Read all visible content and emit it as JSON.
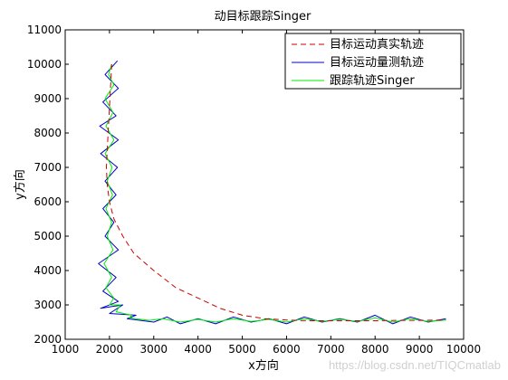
{
  "chart_data": {
    "type": "line",
    "title": "动目标跟踪Singer",
    "xlabel": "x方向",
    "ylabel": "y方向",
    "xlim": [
      1000,
      10000
    ],
    "ylim": [
      2000,
      11000
    ],
    "xticks": [
      1000,
      2000,
      3000,
      4000,
      5000,
      6000,
      7000,
      8000,
      9000,
      10000
    ],
    "yticks": [
      2000,
      3000,
      4000,
      5000,
      6000,
      7000,
      8000,
      9000,
      10000,
      11000
    ],
    "grid": false,
    "legend_position": "top-right",
    "series": [
      {
        "name": "目标运动真实轨迹",
        "color": "#cc0000",
        "style": "dashed",
        "x": [
          2050,
          2030,
          2010,
          1990,
          1970,
          1950,
          1930,
          1950,
          2000,
          2100,
          2300,
          2550,
          3000,
          3500,
          4000,
          4500,
          5000,
          5500,
          6000,
          6500,
          7000,
          7500,
          8000,
          8500,
          9000,
          9600
        ],
        "y": [
          10000,
          9500,
          9000,
          8500,
          8000,
          7500,
          7000,
          6500,
          6000,
          5500,
          5000,
          4500,
          4000,
          3500,
          3200,
          2900,
          2700,
          2600,
          2560,
          2540,
          2540,
          2540,
          2540,
          2550,
          2550,
          2560
        ]
      },
      {
        "name": "目标运动量测轨迹",
        "color": "#0000cc",
        "style": "solid",
        "x": [
          2180,
          1900,
          2200,
          1850,
          2150,
          1780,
          2200,
          1800,
          2180,
          1900,
          2150,
          1850,
          2100,
          1900,
          2200,
          1750,
          2150,
          1850,
          2200,
          1800,
          2300,
          2000,
          2600,
          2400,
          3000,
          3300,
          3600,
          4000,
          4400,
          4800,
          5200,
          5600,
          6000,
          6400,
          6800,
          7200,
          7600,
          8000,
          8400,
          8800,
          9200,
          9600
        ],
        "y": [
          10100,
          9700,
          9300,
          8900,
          8500,
          8200,
          7800,
          7400,
          7000,
          6600,
          6200,
          5800,
          5400,
          5000,
          4600,
          4200,
          3800,
          3400,
          3100,
          2900,
          3000,
          2750,
          2700,
          2600,
          2500,
          2650,
          2450,
          2600,
          2450,
          2650,
          2500,
          2600,
          2450,
          2650,
          2500,
          2600,
          2500,
          2700,
          2450,
          2650,
          2500,
          2600
        ]
      },
      {
        "name": "跟踪轨迹Singer",
        "color": "#00ee00",
        "style": "solid",
        "x": [
          2050,
          1980,
          2100,
          1900,
          2080,
          1920,
          2100,
          1900,
          2060,
          1950,
          2070,
          1920,
          2050,
          1950,
          2080,
          1880,
          2050,
          1920,
          2100,
          2000,
          2250,
          2150,
          2500,
          2450,
          2900,
          3200,
          3600,
          4000,
          4400,
          4800,
          5200,
          5600,
          6000,
          6400,
          6800,
          7200,
          7600,
          8000,
          8400,
          8800,
          9200,
          9600
        ],
        "y": [
          10000,
          9700,
          9400,
          9000,
          8600,
          8200,
          7800,
          7400,
          7000,
          6600,
          6200,
          5800,
          5400,
          5000,
          4600,
          4200,
          3800,
          3500,
          3200,
          3000,
          3000,
          2800,
          2700,
          2620,
          2550,
          2600,
          2500,
          2580,
          2500,
          2600,
          2520,
          2580,
          2500,
          2600,
          2520,
          2580,
          2520,
          2620,
          2500,
          2600,
          2520,
          2560
        ]
      }
    ]
  },
  "watermark": "https://blog.csdn.net/TIQCmatlab"
}
